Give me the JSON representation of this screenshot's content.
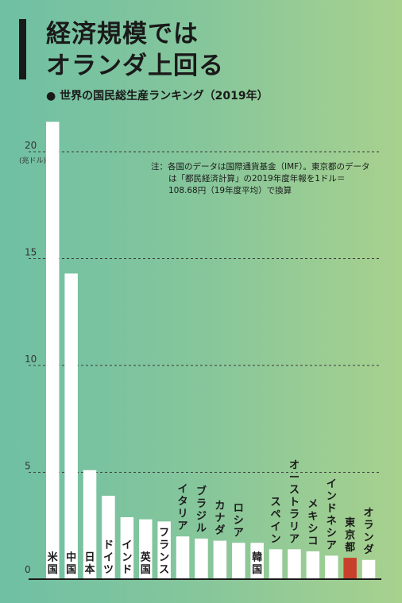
{
  "header": {
    "title_line1": "経済規模では",
    "title_line2": "オランダ上回る",
    "subtitle": "● 世界の国民総生産ランキング（2019年）"
  },
  "note": {
    "line1": "注：各国のデータは国際通貨基金（IMF）。東京都のデータ",
    "line2": "は「都民経済計算」の2019年度年報を1ドル＝",
    "line3": "108.68円（19年度平均）で換算"
  },
  "chart_data": {
    "type": "bar",
    "categories": [
      "米国",
      "中国",
      "日本",
      "ドイツ",
      "インド",
      "英国",
      "フランス",
      "イタリア",
      "ブラジル",
      "カナダ",
      "ロシア",
      "韓国",
      "スペイン",
      "オーストラリア",
      "メキシコ",
      "インドネシア",
      "東京都",
      "オランダ"
    ],
    "values": [
      21.4,
      14.3,
      5.1,
      3.9,
      2.9,
      2.8,
      2.7,
      2.0,
      1.9,
      1.8,
      1.7,
      1.7,
      1.4,
      1.4,
      1.3,
      1.1,
      1.0,
      0.9
    ],
    "unit": "(兆ドル)",
    "yticks": [
      0,
      5,
      10,
      15,
      20
    ],
    "ylim": [
      0,
      22
    ],
    "grid": true,
    "highlight": "東京都",
    "colors": {
      "bar": "#ffffff",
      "highlight_bar": "#c8402b",
      "highlight_label": "#c8402b",
      "grid": "#3a3a3a",
      "axis": "#1a1a1a"
    }
  }
}
